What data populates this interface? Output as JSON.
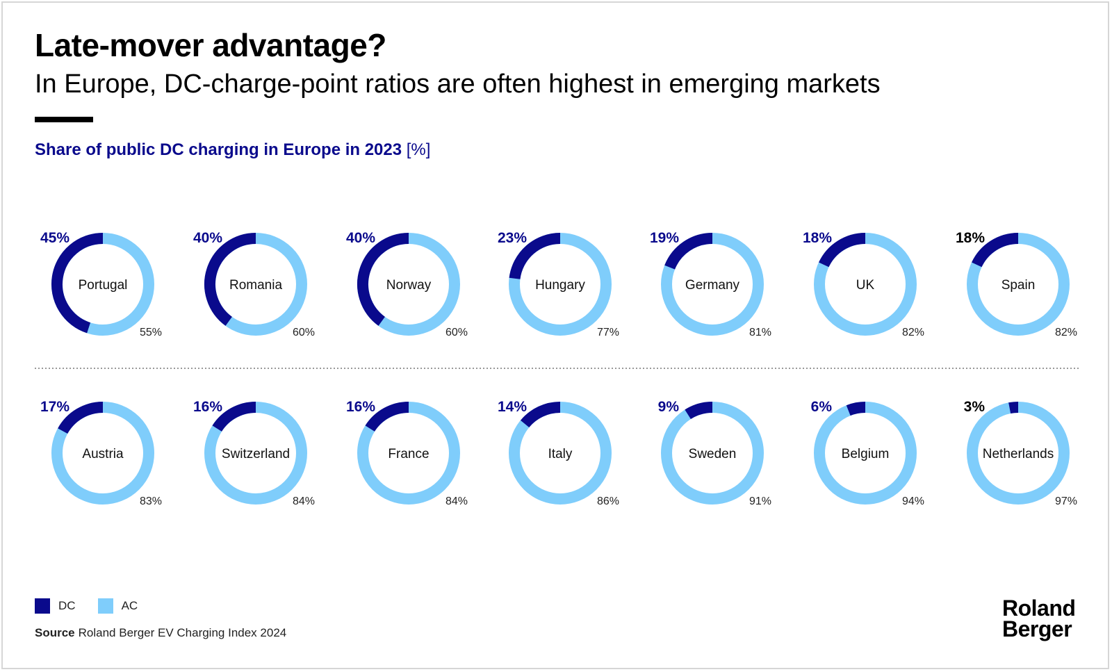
{
  "header": {
    "title": "Late-mover advantage?",
    "subtitle": "In Europe, DC-charge-point ratios are often highest in emerging markets"
  },
  "chart_data": {
    "type": "donut",
    "title": "Share of public DC charging in Europe in 2023",
    "unit_label": "[%]",
    "series_names": [
      "DC",
      "AC"
    ],
    "colors": {
      "DC": "#0a0a8c",
      "AC": "#7fcdfb"
    },
    "label_color_dark": "#000000",
    "percent_suffix": "%",
    "categories": [
      "Portugal",
      "Romania",
      "Norway",
      "Hungary",
      "Germany",
      "UK",
      "Spain",
      "Austria",
      "Switzerland",
      "France",
      "Italy",
      "Sweden",
      "Belgium",
      "Netherlands"
    ],
    "series": [
      {
        "name": "DC",
        "values": [
          45,
          40,
          40,
          23,
          19,
          18,
          18,
          17,
          16,
          16,
          14,
          9,
          6,
          3
        ]
      },
      {
        "name": "AC",
        "values": [
          55,
          60,
          60,
          77,
          81,
          82,
          82,
          83,
          84,
          84,
          86,
          91,
          94,
          97
        ]
      }
    ]
  },
  "legend": {
    "dc_label": "DC",
    "ac_label": "AC"
  },
  "footer": {
    "source_label": "Source",
    "source_text": "Roland Berger EV Charging Index 2024",
    "logo_line1": "Roland",
    "logo_line2": "Berger"
  }
}
